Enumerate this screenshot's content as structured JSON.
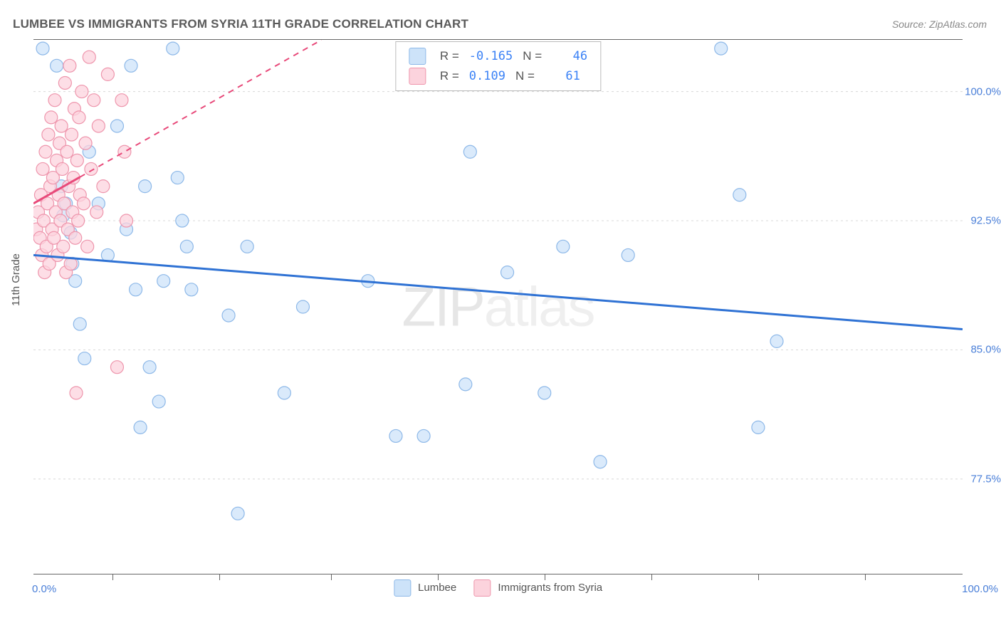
{
  "title": "LUMBEE VS IMMIGRANTS FROM SYRIA 11TH GRADE CORRELATION CHART",
  "source": "Source: ZipAtlas.com",
  "y_axis_label": "11th Grade",
  "watermark": {
    "bold": "ZIP",
    "light": "atlas"
  },
  "chart": {
    "type": "scatter",
    "xlim": [
      0,
      100
    ],
    "ylim": [
      72,
      103
    ],
    "x_ticks_pct": [
      8.5,
      20,
      32,
      43.5,
      55,
      66.5,
      78,
      89.5
    ],
    "x_start_label": "0.0%",
    "x_end_label": "100.0%",
    "y_gridlines": [
      {
        "value": 100.0,
        "label": "100.0%"
      },
      {
        "value": 92.5,
        "label": "92.5%"
      },
      {
        "value": 85.0,
        "label": "85.0%"
      },
      {
        "value": 77.5,
        "label": "77.5%"
      }
    ],
    "grid_color": "#d8d8d8",
    "background_color": "#ffffff",
    "point_radius": 9,
    "point_stroke_width": 1.2,
    "series": [
      {
        "name": "Lumbee",
        "fill": "#cde3f9",
        "stroke": "#8db8e8",
        "line_color": "#2f72d4",
        "line_dash": null,
        "line_width": 3,
        "R": "-0.165",
        "N": "46",
        "regression": {
          "x1": 0,
          "y1": 90.5,
          "x2": 100,
          "y2": 86.2
        },
        "points": [
          [
            1,
            102.5
          ],
          [
            2.5,
            101.5
          ],
          [
            3.0,
            94.5
          ],
          [
            3.2,
            92.8
          ],
          [
            3.5,
            93.5
          ],
          [
            4.0,
            91.8
          ],
          [
            4.2,
            90.0
          ],
          [
            4.5,
            89.0
          ],
          [
            5.0,
            86.5
          ],
          [
            5.5,
            84.5
          ],
          [
            6.0,
            96.5
          ],
          [
            7.0,
            93.5
          ],
          [
            8.0,
            90.5
          ],
          [
            9.0,
            98.0
          ],
          [
            10.0,
            92.0
          ],
          [
            10.5,
            101.5
          ],
          [
            11.0,
            88.5
          ],
          [
            11.5,
            80.5
          ],
          [
            12.0,
            94.5
          ],
          [
            12.5,
            84.0
          ],
          [
            13.5,
            82.0
          ],
          [
            14.0,
            89.0
          ],
          [
            15.0,
            102.5
          ],
          [
            15.5,
            95.0
          ],
          [
            16.0,
            92.5
          ],
          [
            16.5,
            91.0
          ],
          [
            17.0,
            88.5
          ],
          [
            21.0,
            87.0
          ],
          [
            22.0,
            75.5
          ],
          [
            23.0,
            91.0
          ],
          [
            27.0,
            82.5
          ],
          [
            29.0,
            87.5
          ],
          [
            36.0,
            89.0
          ],
          [
            39.0,
            80.0
          ],
          [
            42.0,
            80.0
          ],
          [
            46.5,
            83.0
          ],
          [
            47.0,
            96.5
          ],
          [
            51.0,
            89.5
          ],
          [
            55.0,
            82.5
          ],
          [
            57.0,
            91.0
          ],
          [
            61.0,
            78.5
          ],
          [
            64.0,
            90.5
          ],
          [
            74.0,
            102.5
          ],
          [
            76.0,
            94.0
          ],
          [
            78.0,
            80.5
          ],
          [
            80.0,
            85.5
          ]
        ]
      },
      {
        "name": "Immigrants from Syria",
        "fill": "#fcd3dd",
        "stroke": "#ee95ac",
        "line_color": "#e84a7a",
        "line_dash": "8,7",
        "line_width": 2,
        "R": "0.109",
        "N": "61",
        "regression_solid_until_x": 5,
        "regression": {
          "x1": 0,
          "y1": 93.5,
          "x2": 31,
          "y2": 103.0
        },
        "points": [
          [
            0.3,
            92.0
          ],
          [
            0.5,
            93.0
          ],
          [
            0.7,
            91.5
          ],
          [
            0.8,
            94.0
          ],
          [
            0.9,
            90.5
          ],
          [
            1.0,
            95.5
          ],
          [
            1.1,
            92.5
          ],
          [
            1.2,
            89.5
          ],
          [
            1.3,
            96.5
          ],
          [
            1.4,
            91.0
          ],
          [
            1.5,
            93.5
          ],
          [
            1.6,
            97.5
          ],
          [
            1.7,
            90.0
          ],
          [
            1.8,
            94.5
          ],
          [
            1.9,
            98.5
          ],
          [
            2.0,
            92.0
          ],
          [
            2.1,
            95.0
          ],
          [
            2.2,
            91.5
          ],
          [
            2.3,
            99.5
          ],
          [
            2.4,
            93.0
          ],
          [
            2.5,
            96.0
          ],
          [
            2.6,
            90.5
          ],
          [
            2.7,
            94.0
          ],
          [
            2.8,
            97.0
          ],
          [
            2.9,
            92.5
          ],
          [
            3.0,
            98.0
          ],
          [
            3.1,
            95.5
          ],
          [
            3.2,
            91.0
          ],
          [
            3.3,
            93.5
          ],
          [
            3.4,
            100.5
          ],
          [
            3.5,
            89.5
          ],
          [
            3.6,
            96.5
          ],
          [
            3.7,
            92.0
          ],
          [
            3.8,
            94.5
          ],
          [
            3.9,
            101.5
          ],
          [
            4.0,
            90.0
          ],
          [
            4.1,
            97.5
          ],
          [
            4.2,
            93.0
          ],
          [
            4.3,
            95.0
          ],
          [
            4.4,
            99.0
          ],
          [
            4.5,
            91.5
          ],
          [
            4.6,
            82.5
          ],
          [
            4.7,
            96.0
          ],
          [
            4.8,
            92.5
          ],
          [
            4.9,
            98.5
          ],
          [
            5.0,
            94.0
          ],
          [
            5.2,
            100.0
          ],
          [
            5.4,
            93.5
          ],
          [
            5.6,
            97.0
          ],
          [
            5.8,
            91.0
          ],
          [
            6.0,
            102.0
          ],
          [
            6.2,
            95.5
          ],
          [
            6.5,
            99.5
          ],
          [
            6.8,
            93.0
          ],
          [
            7.0,
            98.0
          ],
          [
            7.5,
            94.5
          ],
          [
            8.0,
            101.0
          ],
          [
            9.0,
            84.0
          ],
          [
            9.5,
            99.5
          ],
          [
            9.8,
            96.5
          ],
          [
            10.0,
            92.5
          ]
        ]
      }
    ]
  },
  "bottom_legend": [
    {
      "label": "Lumbee",
      "fill": "#cde3f9",
      "stroke": "#8db8e8"
    },
    {
      "label": "Immigrants from Syria",
      "fill": "#fcd3dd",
      "stroke": "#ee95ac"
    }
  ]
}
